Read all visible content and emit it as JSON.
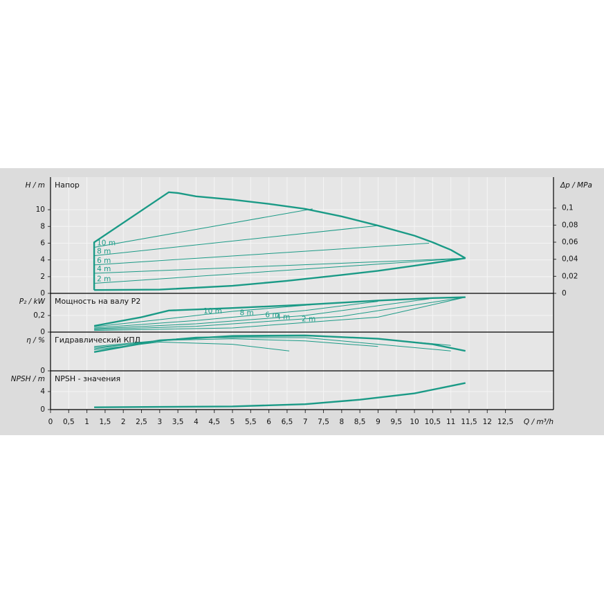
{
  "chart_data": [
    {
      "type": "line",
      "title": "Напор",
      "y_label": "H / m",
      "y2_label": "Δp / MPa",
      "color": "#1a9a86",
      "grid": true,
      "ylim": [
        0,
        13.9
      ],
      "yticks": [
        0,
        2,
        4,
        6,
        8,
        10
      ],
      "y2lim": [
        0,
        0.1363
      ],
      "y2ticks": [
        0,
        {
          "value": 0.02,
          "label": "0,02"
        },
        {
          "value": 0.04,
          "label": "0,04"
        },
        {
          "value": 0.06,
          "label": "0,06"
        },
        {
          "value": 0.08,
          "label": "0,08"
        },
        {
          "value": 0.1,
          "label": "0,1"
        }
      ],
      "series": [
        {
          "x": [
            1.2,
            1.2,
            3.25,
            3.5,
            4,
            5,
            6,
            7,
            8,
            9,
            10,
            10.5,
            11,
            11.4
          ],
          "values": [
            0.4,
            6.1,
            12.1,
            12.0,
            11.6,
            11.2,
            10.7,
            10.1,
            9.2,
            8.1,
            6.9,
            6.1,
            5.2,
            4.2
          ]
        },
        {
          "x": [
            1.2,
            3,
            5,
            6.5,
            8,
            9,
            10,
            11.4
          ],
          "values": [
            0.4,
            0.45,
            0.9,
            1.5,
            2.2,
            2.7,
            3.3,
            4.2
          ]
        },
        {
          "name": "10 m",
          "x": [
            1.2,
            7.2
          ],
          "values": [
            5.5,
            10.1
          ]
        },
        {
          "name": "8 m",
          "x": [
            1.2,
            9.0
          ],
          "values": [
            4.5,
            8.1
          ]
        },
        {
          "name": "6 m",
          "x": [
            1.2,
            10.4
          ],
          "values": [
            3.4,
            6.0
          ]
        },
        {
          "name": "4 m",
          "x": [
            1.2,
            11.4
          ],
          "values": [
            2.4,
            4.2
          ]
        },
        {
          "name": "2 m",
          "x": [
            1.2,
            11.4
          ],
          "values": [
            1.2,
            4.2
          ]
        }
      ]
    },
    {
      "type": "line",
      "title": "Мощность на валу P2",
      "y_label": "P₂ / kW",
      "color": "#1a9a86",
      "grid": true,
      "ylim": [
        0,
        0.467
      ],
      "yticks": [
        0,
        {
          "value": 0.2,
          "label": "0,2"
        }
      ],
      "series": [
        {
          "x": [
            1.2,
            2.5,
            3.25,
            5,
            7,
            9,
            10.5,
            11.4
          ],
          "values": [
            0.075,
            0.18,
            0.26,
            0.29,
            0.33,
            0.38,
            0.41,
            0.42
          ]
        },
        {
          "name": "10 m",
          "x": [
            1.2,
            3,
            5,
            7.2
          ],
          "values": [
            0.065,
            0.15,
            0.25,
            0.33
          ]
        },
        {
          "name": "8 m",
          "x": [
            1.2,
            4,
            7,
            9
          ],
          "values": [
            0.05,
            0.14,
            0.26,
            0.37
          ]
        },
        {
          "name": "6 m",
          "x": [
            1.2,
            4,
            7,
            10.4
          ],
          "values": [
            0.04,
            0.1,
            0.2,
            0.4
          ]
        },
        {
          "name": "4 m",
          "x": [
            1.2,
            4,
            8,
            11.4
          ],
          "values": [
            0.03,
            0.07,
            0.19,
            0.42
          ]
        },
        {
          "name": "2 m",
          "x": [
            1.2,
            5,
            9,
            11.4
          ],
          "values": [
            0.02,
            0.05,
            0.18,
            0.42
          ]
        }
      ]
    },
    {
      "type": "line",
      "title": "Гидравлический КПД",
      "y_label": "η / %",
      "color": "#1a9a86",
      "grid": true,
      "ylim": [
        0,
        70
      ],
      "yticks": [
        0
      ],
      "series": [
        {
          "x": [
            1.2,
            3,
            5,
            7,
            9,
            10.5,
            11.4
          ],
          "values": [
            34,
            55,
            63,
            64,
            58,
            48,
            36
          ]
        },
        {
          "x": [
            1.2,
            3,
            5,
            6.56
          ],
          "values": [
            38,
            52,
            48,
            36
          ]
        },
        {
          "x": [
            1.2,
            3,
            5,
            7,
            9
          ],
          "values": [
            40,
            55,
            58,
            54,
            44
          ]
        },
        {
          "x": [
            1.2,
            4,
            7,
            11
          ],
          "values": [
            42,
            60,
            60,
            36
          ]
        },
        {
          "x": [
            1.2,
            4,
            7,
            9,
            11
          ],
          "values": [
            44,
            61,
            63,
            58,
            46
          ]
        }
      ]
    },
    {
      "type": "line",
      "title": "NPSH - значения",
      "y_label": "NPSH / m",
      "x_label": "Q / m³/h",
      "color": "#1a9a86",
      "grid": true,
      "ylim": [
        0,
        8.6
      ],
      "yticks": [
        0,
        4
      ],
      "xlim": [
        0,
        13.82
      ],
      "xticks": [
        0,
        {
          "value": 0.5,
          "label": "0,5"
        },
        1,
        {
          "value": 1.5,
          "label": "1,5"
        },
        2,
        {
          "value": 2.5,
          "label": "2,5"
        },
        3,
        {
          "value": 3.5,
          "label": "3,5"
        },
        4,
        {
          "value": 4.5,
          "label": "4,5"
        },
        5,
        {
          "value": 5.5,
          "label": "5,5"
        },
        6,
        {
          "value": 6.5,
          "label": "6,5"
        },
        7,
        {
          "value": 7.5,
          "label": "7,5"
        },
        8,
        {
          "value": 8.5,
          "label": "8,5"
        },
        9,
        {
          "value": 9.5,
          "label": "9,5"
        },
        10,
        {
          "value": 10.5,
          "label": "10,5"
        },
        11,
        {
          "value": 11.5,
          "label": "11,5"
        },
        12,
        {
          "value": 12.5,
          "label": "12,5"
        }
      ],
      "series": [
        {
          "x": [
            1.2,
            3,
            5,
            7,
            8.5,
            10,
            11.4
          ],
          "values": [
            0.5,
            0.6,
            0.7,
            1.2,
            2.2,
            3.6,
            5.9
          ]
        }
      ]
    }
  ]
}
